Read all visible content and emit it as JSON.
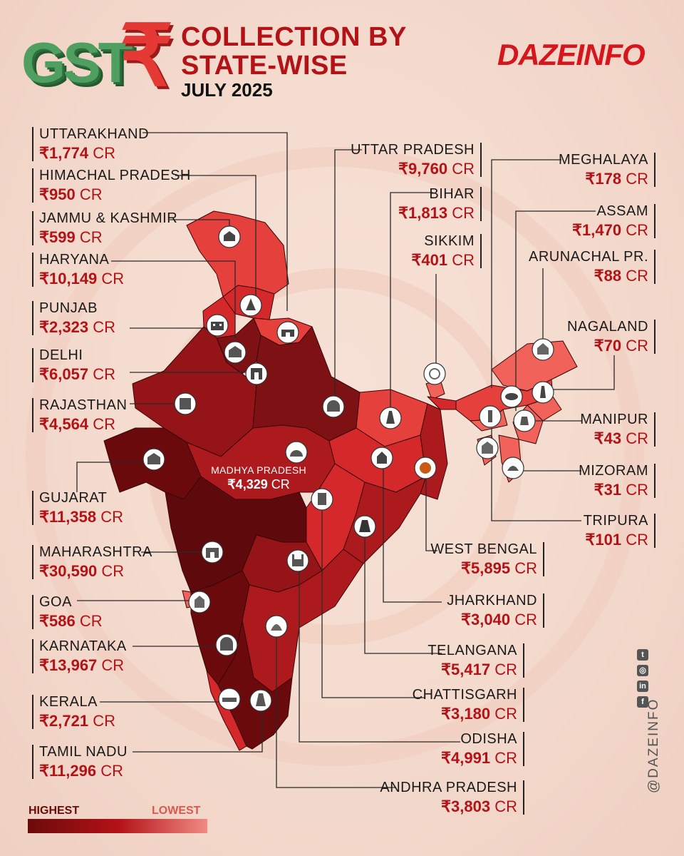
{
  "header": {
    "gst_text": "GST",
    "rupee_glyph": "₹",
    "title_line1": "COLLECTION BY",
    "title_line2": "STATE-WISE",
    "period": "JULY 2025"
  },
  "brand": {
    "logo_text": "DAZEINFO",
    "social_handle": "@DAZEINFO"
  },
  "legend": {
    "high_label": "HIGHEST",
    "low_label": "LOWEST",
    "high_color": "#6b0a0a",
    "low_color": "#f08a82"
  },
  "unit": "CR",
  "currency": "₹",
  "states": {
    "uttarakhand": {
      "name": "UTTARAKHAND",
      "value": "₹1,774",
      "unit": "CR"
    },
    "himachal_pradesh": {
      "name": "HIMACHAL PRADESH",
      "value": "₹950",
      "unit": "CR"
    },
    "jammu_kashmir": {
      "name": "JAMMU & KASHMIR",
      "value": "₹599",
      "unit": "CR"
    },
    "haryana": {
      "name": "HARYANA",
      "value": "₹10,149",
      "unit": "CR"
    },
    "punjab": {
      "name": "PUNJAB",
      "value": "₹2,323",
      "unit": "CR"
    },
    "delhi": {
      "name": "DELHI",
      "value": "₹6,057",
      "unit": "CR"
    },
    "rajasthan": {
      "name": "RAJASTHAN",
      "value": "₹4,564",
      "unit": "CR"
    },
    "gujarat": {
      "name": "GUJARAT",
      "value": "₹11,358",
      "unit": "CR"
    },
    "maharashtra": {
      "name": "MAHARASHTRA",
      "value": "₹30,590",
      "unit": "CR"
    },
    "goa": {
      "name": "GOA",
      "value": "₹586",
      "unit": "CR"
    },
    "karnataka": {
      "name": "KARNATAKA",
      "value": "₹13,967",
      "unit": "CR"
    },
    "kerala": {
      "name": "KERALA",
      "value": "₹2,721",
      "unit": "CR"
    },
    "tamil_nadu": {
      "name": "TAMIL NADU",
      "value": "₹11,296",
      "unit": "CR"
    },
    "uttar_pradesh": {
      "name": "UTTAR PRADESH",
      "value": "₹9,760",
      "unit": "CR"
    },
    "bihar": {
      "name": "BIHAR",
      "value": "₹1,813",
      "unit": "CR"
    },
    "sikkim": {
      "name": "SIKKIM",
      "value": "₹401",
      "unit": "CR"
    },
    "meghalaya": {
      "name": "MEGHALAYA",
      "value": "₹178",
      "unit": "CR"
    },
    "assam": {
      "name": "ASSAM",
      "value": "₹1,470",
      "unit": "CR"
    },
    "arunachal": {
      "name": "ARUNACHAL PR.",
      "value": "₹88",
      "unit": "CR"
    },
    "nagaland": {
      "name": "NAGALAND",
      "value": "₹70",
      "unit": "CR"
    },
    "manipur": {
      "name": "MANIPUR",
      "value": "₹43",
      "unit": "CR"
    },
    "mizoram": {
      "name": "MIZORAM",
      "value": "₹31",
      "unit": "CR"
    },
    "tripura": {
      "name": "TRIPURA",
      "value": "₹101",
      "unit": "CR"
    },
    "west_bengal": {
      "name": "WEST BENGAL",
      "value": "₹5,895",
      "unit": "CR"
    },
    "jharkhand": {
      "name": "JHARKHAND",
      "value": "₹3,040",
      "unit": "CR"
    },
    "telangana": {
      "name": "TELANGANA",
      "value": "₹5,417",
      "unit": "CR"
    },
    "chhattisgarh": {
      "name": "CHATTISGARH",
      "value": "₹3,180",
      "unit": "CR"
    },
    "odisha": {
      "name": "ODISHA",
      "value": "₹4,991",
      "unit": "CR"
    },
    "andhra_pradesh": {
      "name": "ANDHRA PRADESH",
      "value": "₹3,803",
      "unit": "CR"
    },
    "madhya_pradesh": {
      "name": "MADHYA PRADESH",
      "value": "₹4,329",
      "unit": "CR"
    }
  },
  "map_colors": {
    "darkest": "#5e0a0c",
    "dark": "#7e1114",
    "mid_dark": "#951418",
    "mid": "#ad1a1e",
    "bright": "#d5282b",
    "light": "#e6403c",
    "lightest": "#f0625a"
  },
  "icons": [
    "temple-icon",
    "fort-icon",
    "gate-icon",
    "taj-mahal-icon",
    "tiger-icon",
    "monastery-icon",
    "charminar-icon",
    "church-icon",
    "minar-icon"
  ]
}
